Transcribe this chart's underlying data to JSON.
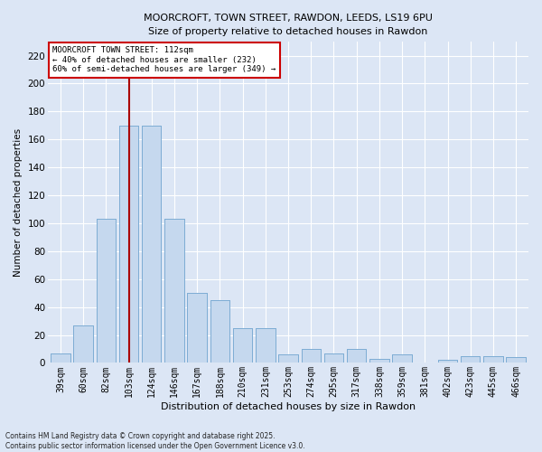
{
  "title1": "MOORCROFT, TOWN STREET, RAWDON, LEEDS, LS19 6PU",
  "title2": "Size of property relative to detached houses in Rawdon",
  "xlabel": "Distribution of detached houses by size in Rawdon",
  "ylabel": "Number of detached properties",
  "categories": [
    "39sqm",
    "60sqm",
    "82sqm",
    "103sqm",
    "124sqm",
    "146sqm",
    "167sqm",
    "188sqm",
    "210sqm",
    "231sqm",
    "253sqm",
    "274sqm",
    "295sqm",
    "317sqm",
    "338sqm",
    "359sqm",
    "381sqm",
    "402sqm",
    "423sqm",
    "445sqm",
    "466sqm"
  ],
  "values": [
    7,
    27,
    103,
    170,
    170,
    103,
    50,
    45,
    25,
    25,
    6,
    10,
    7,
    10,
    3,
    6,
    0,
    2,
    5,
    5,
    4
  ],
  "bar_color": "#c5d8ee",
  "bar_edge_color": "#7eadd4",
  "background_color": "#dce6f5",
  "grid_color": "#ffffff",
  "vline_x_index": 3,
  "vline_color": "#aa0000",
  "annotation_title": "MOORCROFT TOWN STREET: 112sqm",
  "annotation_line1": "← 40% of detached houses are smaller (232)",
  "annotation_line2": "60% of semi-detached houses are larger (349) →",
  "annotation_box_facecolor": "#ffffff",
  "annotation_box_edgecolor": "#cc0000",
  "footer1": "Contains HM Land Registry data © Crown copyright and database right 2025.",
  "footer2": "Contains public sector information licensed under the Open Government Licence v3.0.",
  "ylim": [
    0,
    230
  ],
  "yticks": [
    0,
    20,
    40,
    60,
    80,
    100,
    120,
    140,
    160,
    180,
    200,
    220
  ]
}
